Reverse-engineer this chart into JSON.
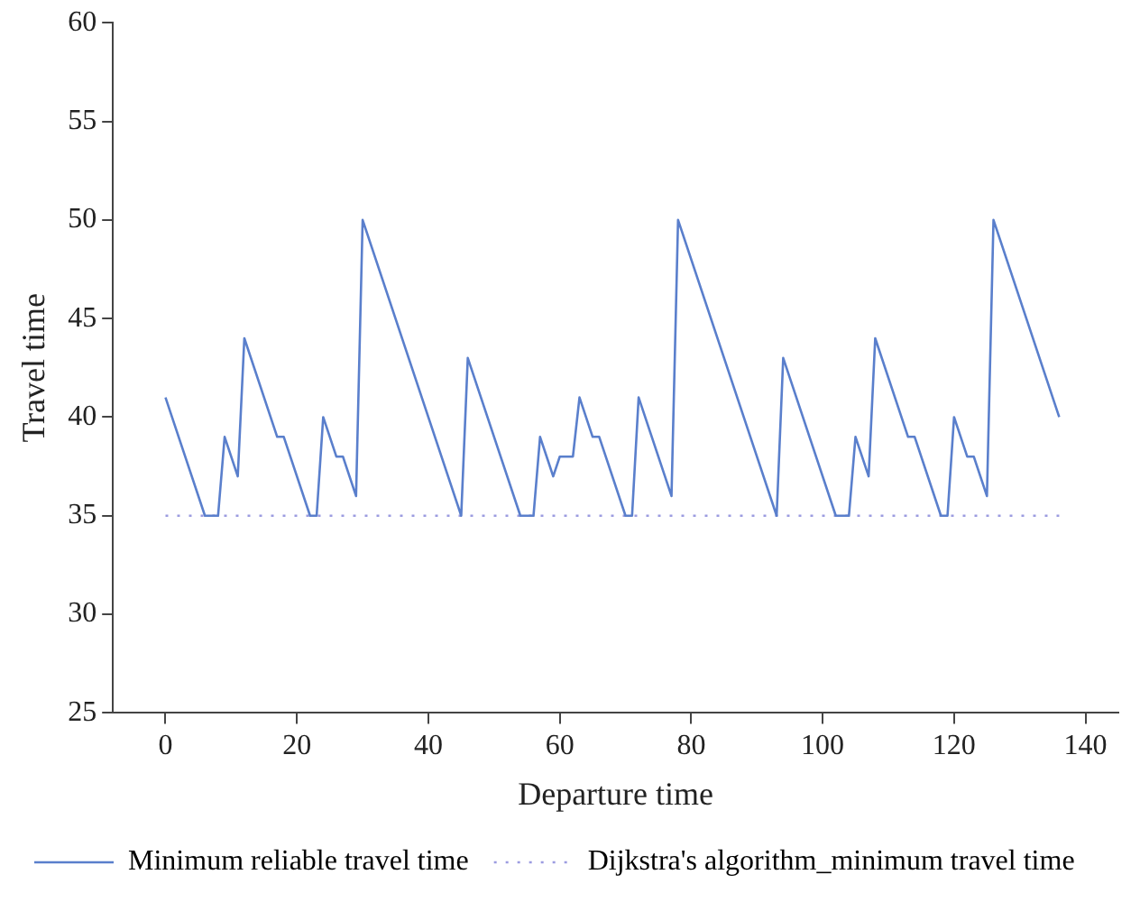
{
  "chart_data": {
    "type": "line",
    "xlabel": "Departure time",
    "ylabel": "Travel time",
    "xlim": [
      -8,
      145
    ],
    "xticks": [
      0,
      20,
      40,
      60,
      80,
      100,
      120,
      140
    ],
    "ylim": [
      25,
      60
    ],
    "yticks": [
      25,
      30,
      35,
      40,
      45,
      50,
      55,
      60
    ],
    "grid": false,
    "legend": "bottom",
    "marker": "none",
    "series": [
      {
        "name": "Minimum reliable travel time",
        "color": "#5a7fcc",
        "line_style": "solid",
        "x": [
          0,
          6,
          8,
          9,
          11,
          12,
          17,
          18,
          22,
          23,
          24,
          26,
          27,
          29,
          30,
          45,
          46,
          54,
          56,
          57,
          59,
          60,
          62,
          63,
          65,
          66,
          70,
          71,
          72,
          77,
          78,
          93,
          94,
          102,
          104,
          105,
          107,
          108,
          113,
          114,
          118,
          119,
          120,
          122,
          123,
          125,
          126,
          136
        ],
        "values": [
          41,
          35,
          35,
          39,
          37,
          44,
          39,
          39,
          35,
          35,
          40,
          38,
          38,
          36,
          50,
          35,
          43,
          35,
          35,
          39,
          37,
          38,
          38,
          41,
          39,
          39,
          35,
          35,
          41,
          36,
          50,
          35,
          43,
          35,
          35,
          39,
          37,
          44,
          39,
          39,
          35,
          35,
          40,
          38,
          38,
          36,
          50,
          40
        ]
      },
      {
        "name": "Dijkstra's algorithm_minimum travel time",
        "color": "#9c9ce0",
        "line_style": "dotted",
        "x": [
          0,
          136
        ],
        "values": [
          35,
          35
        ]
      }
    ]
  }
}
